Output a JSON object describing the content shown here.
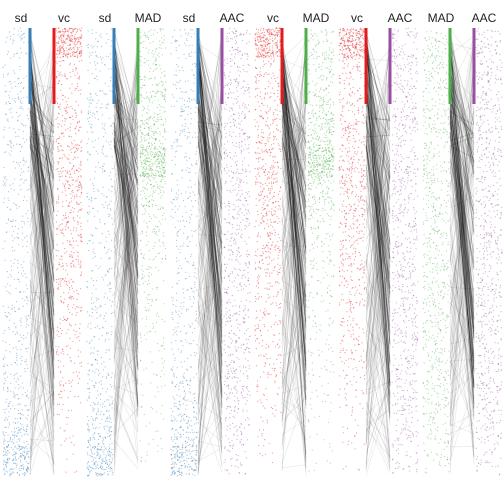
{
  "chart_data": {
    "type": "scatter",
    "title": "",
    "description_free": true,
    "colors": {
      "sd": "#377eb8",
      "vc": "#e41a1c",
      "MAD": "#4daf4a",
      "AAC": "#984ea3",
      "link": "#000000"
    },
    "panels": [
      {
        "left": "sd",
        "right": "vc"
      },
      {
        "left": "sd",
        "right": "MAD"
      },
      {
        "left": "sd",
        "right": "AAC"
      },
      {
        "left": "vc",
        "right": "MAD"
      },
      {
        "left": "vc",
        "right": "AAC"
      },
      {
        "left": "MAD",
        "right": "AAC"
      }
    ],
    "density": {
      "sd": [
        0.14,
        0.1,
        0.16,
        0.14,
        0.11,
        0.13,
        0.12,
        0.1,
        0.12,
        0.15,
        0.13,
        0.17,
        0.22,
        0.34,
        0.62
      ],
      "vc": [
        0.95,
        0.18,
        0.2,
        0.24,
        0.3,
        0.3,
        0.26,
        0.24,
        0.2,
        0.17,
        0.15,
        0.12,
        0.08,
        0.05,
        0.02
      ],
      "MAD_left": [
        0.22,
        0.22,
        0.22,
        0.22,
        0.22,
        0.22,
        0.22,
        0.22,
        0.22,
        0.22,
        0.22,
        0.22,
        0.22,
        0.16,
        0.1
      ],
      "MAD_right": [
        0.22,
        0.22,
        0.3,
        0.45,
        0.95,
        0.3,
        0.18,
        0.14,
        0.12,
        0.1,
        0.08,
        0.07,
        0.05,
        0.04,
        0.03
      ],
      "AAC": [
        0.22,
        0.22,
        0.22,
        0.22,
        0.22,
        0.22,
        0.22,
        0.22,
        0.22,
        0.22,
        0.22,
        0.22,
        0.22,
        0.18,
        0.12
      ]
    },
    "xlabel": "",
    "ylabel": "",
    "grid": false,
    "legend": "none"
  }
}
